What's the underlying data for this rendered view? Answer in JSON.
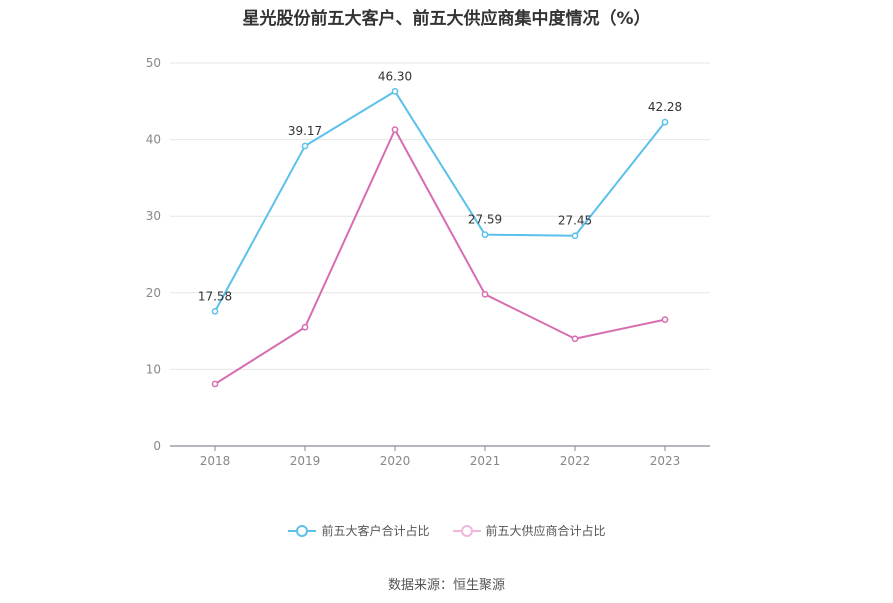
{
  "chart_data": {
    "type": "line",
    "title": "星光股份前五大客户、前五大供应商集中度情况（%）",
    "categories": [
      "2018",
      "2019",
      "2020",
      "2021",
      "2022",
      "2023"
    ],
    "ylim": [
      0,
      50
    ],
    "yticks": [
      0,
      10,
      20,
      30,
      40,
      50
    ],
    "grid": true,
    "legend_position": "bottom",
    "series": [
      {
        "name": "前五大客户合计占比",
        "color": "#5bc0eb",
        "values": [
          17.58,
          39.17,
          46.3,
          27.59,
          27.45,
          42.28
        ],
        "labels": [
          "17.58",
          "39.17",
          "46.30",
          "27.59",
          "27.45",
          "42.28"
        ]
      },
      {
        "name": "前五大供应商合计占比",
        "color": "#d66db1",
        "values": [
          8.1,
          15.5,
          41.3,
          19.8,
          14.0,
          16.5
        ],
        "labels": []
      }
    ],
    "source": "数据来源：恒生聚源"
  }
}
